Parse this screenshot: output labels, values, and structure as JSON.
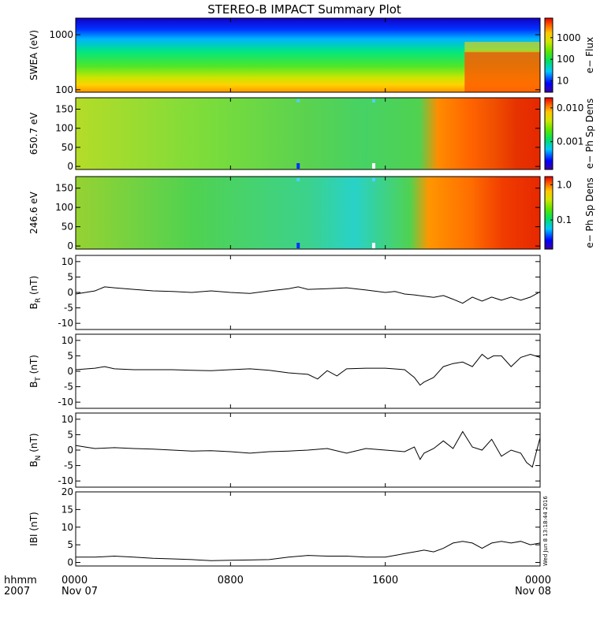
{
  "chart_data": {
    "type": "multi-panel",
    "title": "STEREO-B IMPACT Summary Plot",
    "stamp": "Wed Jun  8 13:18:44 2016",
    "time_axis": {
      "row_label_1": "hhmm",
      "row_label_2": "2007",
      "range_hours": [
        0,
        24
      ],
      "ticks": [
        {
          "hour": 0,
          "label": "0000",
          "date": "Nov 07"
        },
        {
          "hour": 8,
          "label": "0800",
          "date": ""
        },
        {
          "hour": 16,
          "label": "1600",
          "date": ""
        },
        {
          "hour": 24,
          "label": "0000",
          "date": "Nov 08"
        }
      ]
    },
    "spectrograms": [
      {
        "ylabel": "SWEA (eV)",
        "yscale": "log",
        "ylim": [
          90,
          2000
        ],
        "yticks": [
          {
            "v": 100,
            "label": "100"
          },
          {
            "v": 1000,
            "label": "1000"
          }
        ],
        "colorbar_label": "e− Flux",
        "colorbar_scale": "log",
        "colorbar_range": [
          3,
          8000
        ],
        "colorbar_ticks": [
          {
            "v": 10,
            "label": "10"
          },
          {
            "v": 100,
            "label": "100"
          },
          {
            "v": 1000,
            "label": "1000"
          }
        ]
      },
      {
        "ylabel": "650.7 eV",
        "yscale": "linear",
        "ylim": [
          -8,
          180
        ],
        "yticks": [
          {
            "v": 0,
            "label": "0"
          },
          {
            "v": 50,
            "label": "50"
          },
          {
            "v": 100,
            "label": "100"
          },
          {
            "v": 150,
            "label": "150"
          }
        ],
        "colorbar_label": "e− Ph Sp Dens",
        "colorbar_scale": "log",
        "colorbar_range": [
          0.00015,
          0.02
        ],
        "colorbar_ticks": [
          {
            "v": 0.001,
            "label": "0.001"
          },
          {
            "v": 0.01,
            "label": "0.010"
          }
        ]
      },
      {
        "ylabel": "246.6 eV",
        "yscale": "linear",
        "ylim": [
          -8,
          180
        ],
        "yticks": [
          {
            "v": 0,
            "label": "0"
          },
          {
            "v": 50,
            "label": "50"
          },
          {
            "v": 100,
            "label": "100"
          },
          {
            "v": 150,
            "label": "150"
          }
        ],
        "colorbar_label": "e− Ph Sp Dens",
        "colorbar_scale": "log",
        "colorbar_range": [
          0.015,
          1.7
        ],
        "colorbar_ticks": [
          {
            "v": 0.1,
            "label": "0.1"
          },
          {
            "v": 1,
            "label": "1.0"
          }
        ]
      }
    ],
    "line_panels": [
      {
        "ylabel": "B",
        "ysub": "R",
        "yunit": " (nT)",
        "ylim": [
          -12,
          12
        ],
        "yticks": [
          -10,
          -5,
          0,
          5,
          10
        ],
        "x_hours": [
          0,
          1,
          1.5,
          2,
          3,
          4,
          5,
          6,
          7,
          8,
          9,
          10,
          11,
          11.5,
          12,
          13,
          14,
          15,
          16,
          16.5,
          17,
          17.5,
          18,
          18.5,
          19,
          19.5,
          20,
          20.5,
          21,
          21.5,
          22,
          22.5,
          23,
          23.5,
          24
        ],
        "y": [
          -0.5,
          0.5,
          1.8,
          1.5,
          1,
          0.5,
          0.3,
          0,
          0.5,
          0,
          -0.3,
          0.5,
          1.2,
          1.8,
          1,
          1.2,
          1.5,
          0.8,
          0,
          0.3,
          -0.5,
          -0.8,
          -1.2,
          -1.6,
          -1,
          -2.2,
          -3.5,
          -1.5,
          -2.8,
          -1.5,
          -2.5,
          -1.5,
          -2.5,
          -1.5,
          0.2
        ]
      },
      {
        "ylabel": "B",
        "ysub": "T",
        "yunit": " (nT)",
        "ylim": [
          -12,
          12
        ],
        "yticks": [
          -10,
          -5,
          0,
          5,
          10
        ],
        "x_hours": [
          0,
          1,
          1.5,
          2,
          3,
          4,
          5,
          6,
          7,
          8,
          9,
          10,
          11,
          12,
          12.5,
          13,
          13.5,
          14,
          15,
          16,
          17,
          17.5,
          17.8,
          18,
          18.5,
          19,
          19.5,
          20,
          20.5,
          21,
          21.3,
          21.6,
          22,
          22.5,
          23,
          23.5,
          24
        ],
        "y": [
          0.5,
          1,
          1.5,
          0.8,
          0.5,
          0.5,
          0.5,
          0.3,
          0.2,
          0.5,
          0.8,
          0.3,
          -0.5,
          -1,
          -2.5,
          0.2,
          -1.5,
          0.8,
          1,
          1,
          0.5,
          -2,
          -4.5,
          -3.5,
          -2,
          1.5,
          2.5,
          3,
          1.5,
          5.5,
          4,
          5,
          5,
          1.5,
          4.5,
          5.5,
          4.5
        ]
      },
      {
        "ylabel": "B",
        "ysub": "N",
        "yunit": " (nT)",
        "ylim": [
          -12,
          12
        ],
        "yticks": [
          -10,
          -5,
          0,
          5,
          10
        ],
        "x_hours": [
          0,
          0.5,
          1,
          2,
          3,
          4,
          5,
          6,
          7,
          8,
          9,
          10,
          11,
          12,
          13,
          14,
          15,
          16,
          17,
          17.5,
          17.8,
          18,
          18.5,
          19,
          19.5,
          20,
          20.5,
          21,
          21.5,
          22,
          22.5,
          23,
          23.3,
          23.6,
          24
        ],
        "y": [
          1.5,
          1,
          0.5,
          0.8,
          0.5,
          0.3,
          0,
          -0.3,
          -0.2,
          -0.5,
          -1,
          -0.5,
          -0.3,
          0,
          0.5,
          -1,
          0.5,
          0,
          -0.5,
          1,
          -3,
          -1,
          0.5,
          3,
          0.5,
          6,
          1,
          0,
          3.5,
          -2,
          0,
          -1,
          -4,
          -5.5,
          4
        ]
      },
      {
        "ylabel": "IBI",
        "ysub": "",
        "yunit": " (nT)",
        "ylim": [
          -1,
          20
        ],
        "yticks": [
          0,
          5,
          10,
          15,
          20
        ],
        "x_hours": [
          0,
          1,
          2,
          3,
          4,
          5,
          6,
          7,
          8,
          9,
          10,
          11,
          12,
          13,
          14,
          15,
          16,
          17,
          17.5,
          18,
          18.5,
          19,
          19.5,
          20,
          20.5,
          21,
          21.5,
          22,
          22.5,
          23,
          23.5,
          24
        ],
        "y": [
          1.5,
          1.5,
          1.8,
          1.5,
          1.2,
          1,
          0.8,
          0.5,
          0.6,
          0.7,
          0.8,
          1.5,
          2,
          1.8,
          1.8,
          1.5,
          1.5,
          2.5,
          3,
          3.5,
          3,
          4,
          5.5,
          6,
          5.5,
          4,
          5.5,
          6,
          5.5,
          6,
          5,
          5.5
        ]
      }
    ]
  }
}
